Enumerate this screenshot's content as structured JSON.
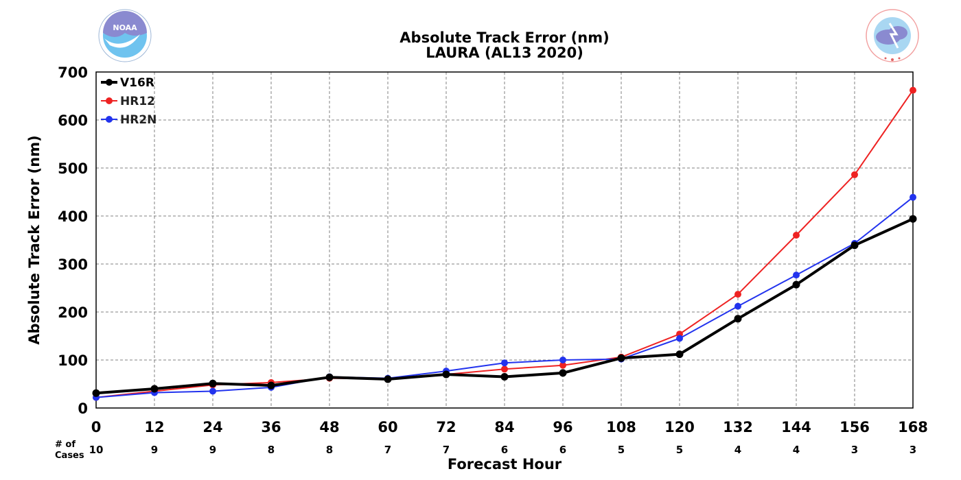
{
  "logos": {
    "left": {
      "text": "NOAA",
      "ring_text": "NATIONAL OCEANIC AND ATMOSPHERIC ADMINISTRATION · U.S. DEPARTMENT OF COMMERCE"
    },
    "right": {
      "ring_text": "NATIONAL WEATHER SERVICE"
    }
  },
  "chart_data": {
    "type": "line",
    "title": "Absolute Track Error (nm)",
    "subtitle": "LAURA (AL13 2020)",
    "xlabel": "Forecast Hour",
    "ylabel": "Absolute Track Error (nm)",
    "x": [
      0,
      12,
      24,
      36,
      48,
      60,
      72,
      84,
      96,
      108,
      120,
      132,
      144,
      156,
      168
    ],
    "xlim": [
      0,
      168
    ],
    "ylim": [
      0,
      700
    ],
    "yticks": [
      0,
      100,
      200,
      300,
      400,
      500,
      600,
      700
    ],
    "grid": true,
    "legend_position": "top-left",
    "cases_label": "# of Cases",
    "cases": [
      10,
      9,
      9,
      8,
      8,
      7,
      7,
      6,
      6,
      5,
      5,
      4,
      4,
      3,
      3
    ],
    "series": [
      {
        "name": "V16R",
        "color": "#000000",
        "values": [
          31,
          40,
          51,
          47,
          64,
          60,
          70,
          65,
          73,
          104,
          112,
          186,
          257,
          339,
          394
        ]
      },
      {
        "name": "HR12",
        "color": "#ee2222",
        "values": [
          22,
          35,
          48,
          53,
          62,
          61,
          70,
          81,
          89,
          106,
          154,
          237,
          360,
          486,
          662
        ]
      },
      {
        "name": "HR2N",
        "color": "#2233ee",
        "values": [
          22,
          32,
          35,
          43,
          65,
          62,
          77,
          94,
          100,
          102,
          145,
          212,
          277,
          343,
          439
        ]
      }
    ]
  }
}
